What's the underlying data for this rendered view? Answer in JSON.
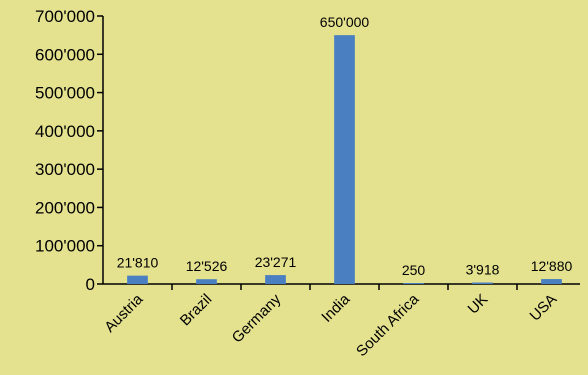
{
  "chart_data": {
    "type": "bar",
    "categories": [
      "Austria",
      "Brazil",
      "Germany",
      "India",
      "South Africa",
      "UK",
      "USA"
    ],
    "values": [
      21810,
      12526,
      23271,
      650000,
      250,
      3918,
      12880
    ],
    "data_labels": [
      "21'810",
      "12'526",
      "23'271",
      "650'000",
      "250",
      "3'918",
      "12'880"
    ],
    "y_ticks": [
      0,
      100000,
      200000,
      300000,
      400000,
      500000,
      600000,
      700000
    ],
    "y_tick_labels": [
      "0",
      "100'000",
      "200'000",
      "300'000",
      "400'000",
      "500'000",
      "600'000",
      "700'000"
    ],
    "ylim": [
      0,
      700000
    ],
    "title": "",
    "xlabel": "",
    "ylabel": "",
    "grid": false,
    "legend": "none",
    "bar_color": "#4a7fc1",
    "background_color": "#e5e28f",
    "axis_color": "#000000"
  }
}
